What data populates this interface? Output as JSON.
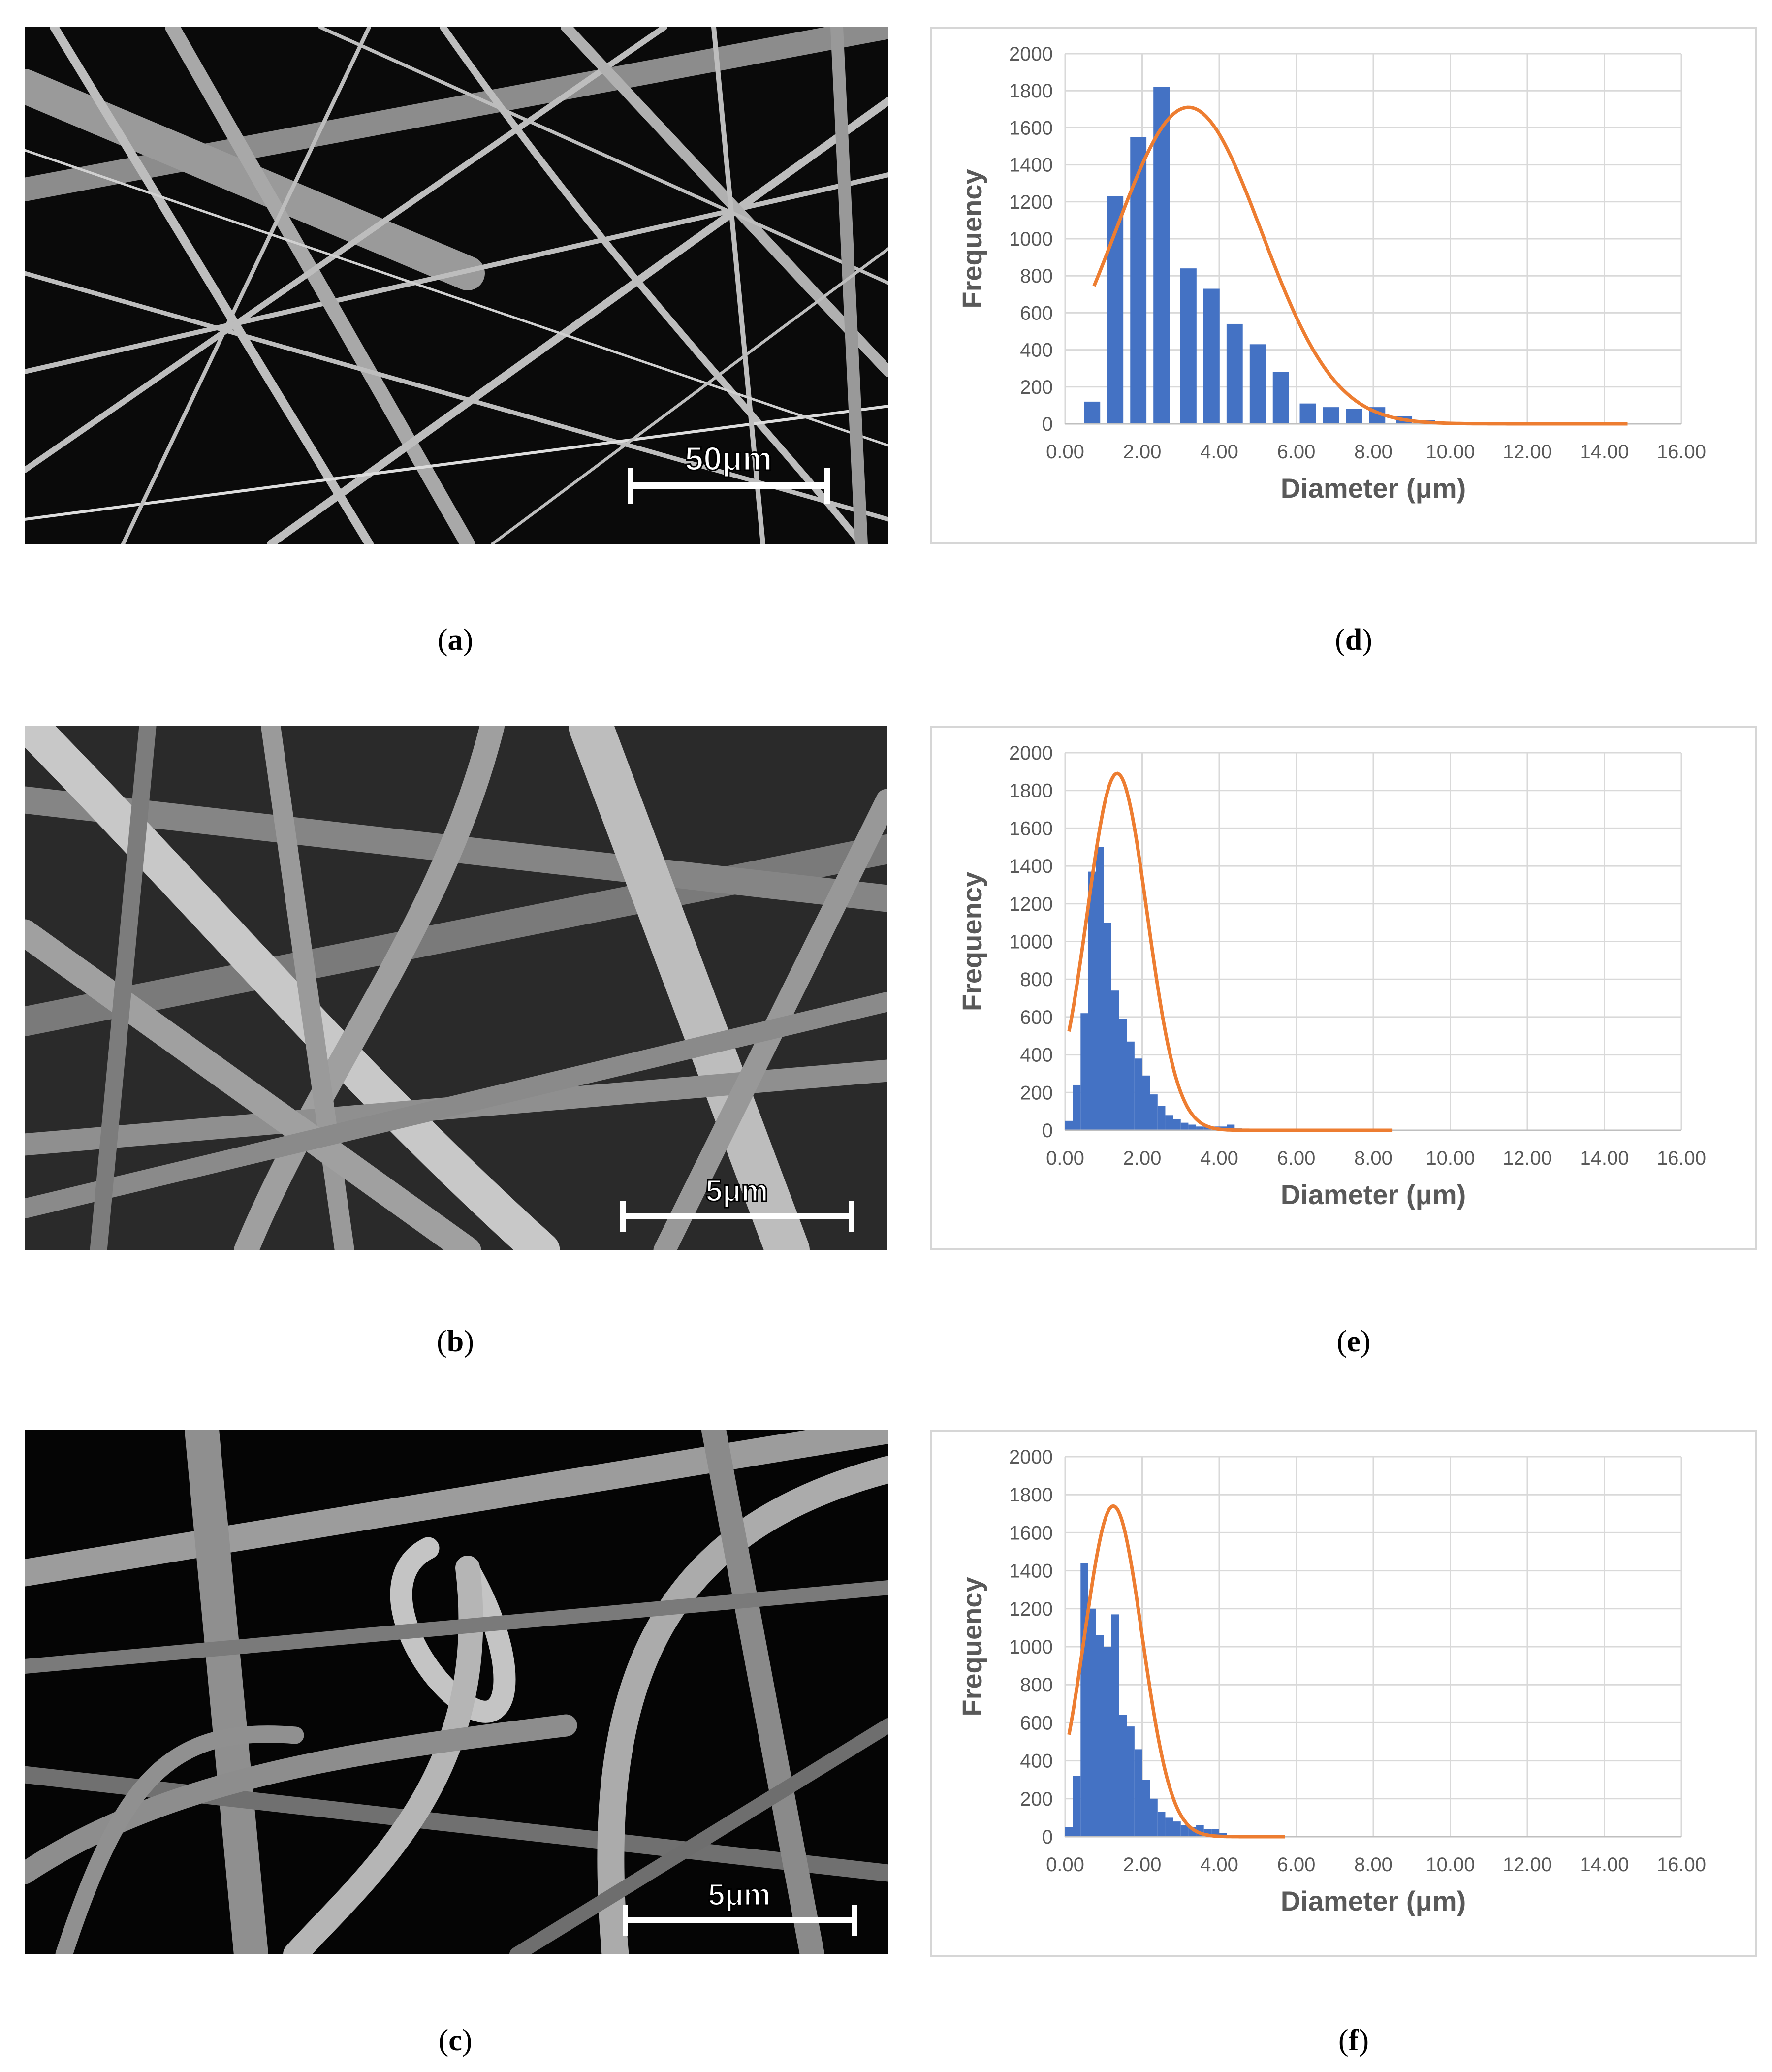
{
  "panels": {
    "a": "a",
    "b": "b",
    "c": "c",
    "d": "d",
    "e": "e",
    "f": "f"
  },
  "sem_images": [
    {
      "id": "a",
      "scale_label": "50μm"
    },
    {
      "id": "b",
      "scale_label": "5μm"
    },
    {
      "id": "c",
      "scale_label": "5μm"
    }
  ],
  "chart_data": [
    {
      "id": "d",
      "type": "bar",
      "xlabel": "Diameter (μm)",
      "ylabel": "Frequency",
      "xlim": [
        0,
        16
      ],
      "ylim": [
        0,
        2000
      ],
      "x_ticks": [
        "0.00",
        "2.00",
        "4.00",
        "6.00",
        "8.00",
        "10.00",
        "12.00",
        "14.00",
        "16.00"
      ],
      "y_ticks": [
        "0",
        "200",
        "400",
        "600",
        "800",
        "1000",
        "1200",
        "1400",
        "1600",
        "1800",
        "2000"
      ],
      "bar_width": 0.42,
      "bars": {
        "x": [
          0.7,
          1.3,
          1.9,
          2.5,
          3.2,
          3.8,
          4.4,
          5.0,
          5.6,
          6.3,
          6.9,
          7.5,
          8.1,
          8.8,
          9.4,
          10.0
        ],
        "y": [
          120,
          1230,
          1550,
          1820,
          840,
          730,
          540,
          430,
          280,
          110,
          90,
          80,
          90,
          40,
          20,
          0
        ]
      },
      "fit": {
        "mean": 3.2,
        "sd": 1.9,
        "peak": 1710,
        "x_start": 0.75,
        "x_end": 14.6
      },
      "colors": {
        "bar": "#4472c4",
        "fit": "#ed7d31"
      }
    },
    {
      "id": "e",
      "type": "bar",
      "xlabel": "Diameter (μm)",
      "ylabel": "Frequency",
      "xlim": [
        0,
        16
      ],
      "ylim": [
        0,
        2000
      ],
      "x_ticks": [
        "0.00",
        "2.00",
        "4.00",
        "6.00",
        "8.00",
        "10.00",
        "12.00",
        "14.00",
        "16.00"
      ],
      "y_ticks": [
        "0",
        "200",
        "400",
        "600",
        "800",
        "1000",
        "1200",
        "1400",
        "1600",
        "1800",
        "2000"
      ],
      "bar_width": 0.2,
      "bars": {
        "x": [
          0.1,
          0.3,
          0.5,
          0.7,
          0.9,
          1.1,
          1.3,
          1.5,
          1.7,
          1.9,
          2.1,
          2.3,
          2.5,
          2.7,
          2.9,
          3.1,
          3.3,
          3.5,
          3.7,
          3.9,
          4.1,
          4.3,
          4.5
        ],
        "y": [
          50,
          240,
          620,
          1370,
          1500,
          1100,
          740,
          590,
          470,
          380,
          290,
          190,
          130,
          80,
          60,
          40,
          30,
          20,
          20,
          20,
          20,
          30,
          10
        ]
      },
      "fit": {
        "mean": 1.35,
        "sd": 0.78,
        "peak": 1890,
        "x_start": 0.1,
        "x_end": 8.5
      },
      "colors": {
        "bar": "#4472c4",
        "fit": "#ed7d31"
      }
    },
    {
      "id": "f",
      "type": "bar",
      "xlabel": "Diameter (μm)",
      "ylabel": "Frequency",
      "xlim": [
        0,
        16
      ],
      "ylim": [
        0,
        2000
      ],
      "x_ticks": [
        "0.00",
        "2.00",
        "4.00",
        "6.00",
        "8.00",
        "10.00",
        "12.00",
        "14.00",
        "16.00"
      ],
      "y_ticks": [
        "0",
        "200",
        "400",
        "600",
        "800",
        "1000",
        "1200",
        "1400",
        "1600",
        "1800",
        "2000"
      ],
      "bar_width": 0.2,
      "bars": {
        "x": [
          0.1,
          0.3,
          0.5,
          0.7,
          0.9,
          1.1,
          1.3,
          1.5,
          1.7,
          1.9,
          2.1,
          2.3,
          2.5,
          2.7,
          2.9,
          3.1,
          3.3,
          3.5,
          3.7,
          3.9,
          4.1
        ],
        "y": [
          50,
          320,
          1440,
          1200,
          1060,
          1000,
          1170,
          640,
          580,
          460,
          300,
          200,
          130,
          100,
          80,
          60,
          50,
          60,
          40,
          40,
          20
        ]
      },
      "fit": {
        "mean": 1.25,
        "sd": 0.75,
        "peak": 1740,
        "x_start": 0.1,
        "x_end": 5.7
      },
      "colors": {
        "bar": "#4472c4",
        "fit": "#ed7d31"
      }
    }
  ]
}
